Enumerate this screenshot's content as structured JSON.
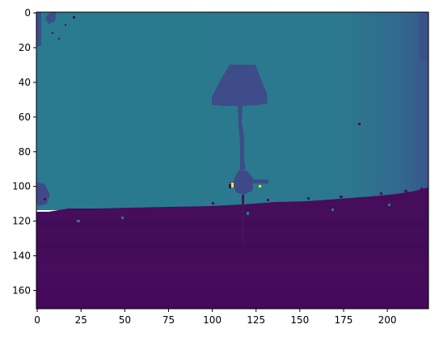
{
  "chart_data": {
    "type": "heatmap",
    "title": "",
    "xlabel": "",
    "ylabel": "",
    "colormap": "viridis",
    "xlim": [
      -0.5,
      223.5
    ],
    "ylim": [
      170.5,
      -0.5
    ],
    "xticks": [
      0,
      25,
      50,
      75,
      100,
      125,
      150,
      175,
      200
    ],
    "xtick_labels": [
      "0",
      "25",
      "50",
      "75",
      "100",
      "125",
      "150",
      "175",
      "200"
    ],
    "yticks": [
      0,
      20,
      40,
      60,
      80,
      100,
      120,
      140,
      160
    ],
    "ytick_labels": [
      "0",
      "20",
      "40",
      "60",
      "80",
      "100",
      "120",
      "140",
      "160"
    ],
    "depicted_regions": [
      {
        "region": "background wall",
        "x": [
          0,
          223
        ],
        "y": [
          0,
          110
        ],
        "color": "#2b7a8e"
      },
      {
        "region": "right edge shading",
        "x": [
          198,
          223
        ],
        "y": [
          0,
          110
        ],
        "color": "#35618d"
      },
      {
        "region": "lamp shade",
        "x": [
          101,
          131
        ],
        "y": [
          30,
          53
        ],
        "color": "#3e4c8a"
      },
      {
        "region": "lamp stem",
        "x": [
          115,
          120
        ],
        "y": [
          53,
          97
        ],
        "color": "#3e4c8a"
      },
      {
        "region": "lamp base",
        "x": [
          108,
          131
        ],
        "y": [
          95,
          104
        ],
        "color": "#3e4c8a"
      },
      {
        "region": "floor band",
        "x": [
          0,
          223
        ],
        "y": [
          112,
          130
        ],
        "color": "#440f5b"
      },
      {
        "region": "floor foreground",
        "x": [
          0,
          223
        ],
        "y": [
          130,
          170
        ],
        "color": "#46095d"
      }
    ],
    "highlight_color": "#fde725"
  }
}
